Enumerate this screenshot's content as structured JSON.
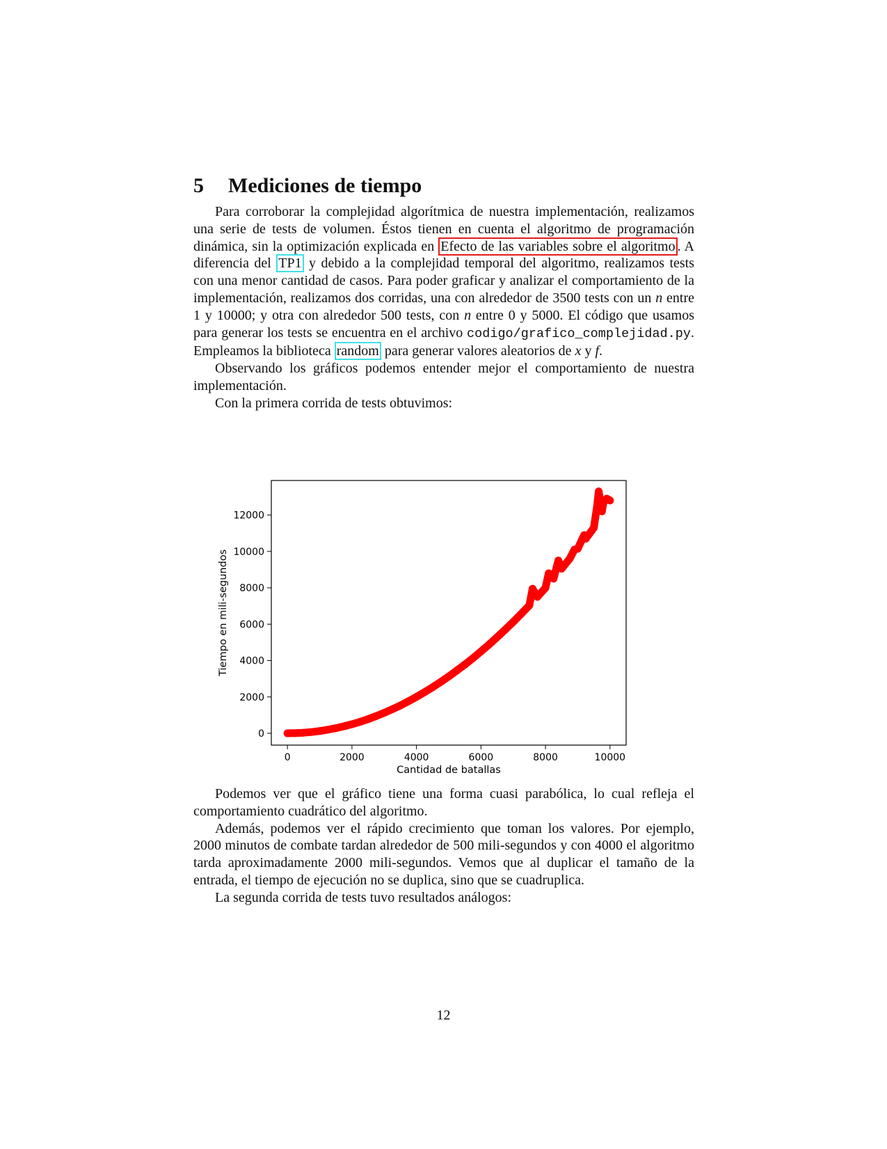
{
  "section": {
    "number": "5",
    "title": "Mediciones de tiempo"
  },
  "paragraph1": {
    "t1": "Para corroborar la complejidad algorítmica de nuestra implementación, realizamos una serie de tests de volumen. Éstos tienen en cuenta el algoritmo de programación dinámica, sin la optimización explicada en ",
    "link1": "Efecto de las variables sobre el algoritmo",
    "t2": ". A diferencia del ",
    "link2": "TP1",
    "t3": " y debido a la complejidad temporal del algoritmo, realizamos tests con una menor cantidad de casos. Para poder graficar y analizar el comportamiento de la implementación, realizamos dos corridas, una con alrededor de 3500 tests con un ",
    "var_n1": "n",
    "t4": " entre 1 y 10000; y otra con alrededor 500 tests, con ",
    "var_n2": "n",
    "t5": " entre 0 y 5000. El código que usamos para generar los tests se encuentra en el archivo ",
    "code_path": "codigo/grafico_complejidad.py",
    "t6": ". Empleamos la biblioteca ",
    "link3": "random",
    "t7": " para generar valores aleatorios de ",
    "var_x": "x",
    "t8": " y ",
    "var_f": "f",
    "t9": "."
  },
  "paragraph2": "Observando los gráficos podemos entender mejor el comportamiento de nuestra implementación.",
  "paragraph3": "Con la primera corrida de tests obtuvimos:",
  "chart_data": {
    "type": "scatter",
    "title": "",
    "xlabel": "Cantidad de batallas",
    "ylabel": "Tiempo en mili-segundos",
    "xlim": [
      -500,
      10500
    ],
    "ylim": [
      -650,
      13900
    ],
    "xticks": [
      "0",
      "2000",
      "4000",
      "6000",
      "8000",
      "10000"
    ],
    "yticks": [
      "0",
      "2000",
      "4000",
      "6000",
      "8000",
      "10000",
      "12000"
    ],
    "marker_color": "#ff0000",
    "series": [
      {
        "points": [
          [
            0,
            0
          ],
          [
            250,
            8
          ],
          [
            500,
            32
          ],
          [
            750,
            70
          ],
          [
            1000,
            125
          ],
          [
            1250,
            195
          ],
          [
            1500,
            280
          ],
          [
            1750,
            385
          ],
          [
            2000,
            500
          ],
          [
            2250,
            630
          ],
          [
            2500,
            780
          ],
          [
            2750,
            945
          ],
          [
            3000,
            1125
          ],
          [
            3250,
            1320
          ],
          [
            3500,
            1530
          ],
          [
            3750,
            1760
          ],
          [
            4000,
            2000
          ],
          [
            4250,
            2260
          ],
          [
            4500,
            2530
          ],
          [
            4750,
            2820
          ],
          [
            5000,
            3125
          ],
          [
            5250,
            3450
          ],
          [
            5500,
            3780
          ],
          [
            5750,
            4130
          ],
          [
            6000,
            4500
          ],
          [
            6250,
            4880
          ],
          [
            6500,
            5280
          ],
          [
            6750,
            5700
          ],
          [
            7000,
            6125
          ],
          [
            7250,
            6570
          ],
          [
            7500,
            7030
          ],
          [
            7600,
            7950
          ],
          [
            7750,
            7500
          ],
          [
            8000,
            8000
          ],
          [
            8100,
            8800
          ],
          [
            8250,
            8500
          ],
          [
            8400,
            9500
          ],
          [
            8500,
            9050
          ],
          [
            8750,
            9600
          ],
          [
            8900,
            10100
          ],
          [
            9000,
            10150
          ],
          [
            9200,
            10900
          ],
          [
            9250,
            10700
          ],
          [
            9500,
            11300
          ],
          [
            9600,
            12500
          ],
          [
            9650,
            13300
          ],
          [
            9750,
            12200
          ],
          [
            9800,
            12700
          ],
          [
            9900,
            12900
          ],
          [
            10000,
            12800
          ]
        ]
      }
    ]
  },
  "paragraph4": "Podemos ver que el gráfico tiene una forma cuasi parabólica, lo cual refleja el comportamiento cuadrático del algoritmo.",
  "paragraph5": "Además, podemos ver el rápido crecimiento que toman los valores. Por ejemplo, 2000 minutos de combate tardan alrededor de 500 mili-segundos y con 4000 el algoritmo tarda aproximadamente 2000 mili-segundos. Vemos que al duplicar el tamaño de la entrada, el tiempo de ejecución no se duplica, sino que se cuadruplica.",
  "paragraph6": "La segunda corrida de tests tuvo resultados análogos:",
  "page_number": "12"
}
